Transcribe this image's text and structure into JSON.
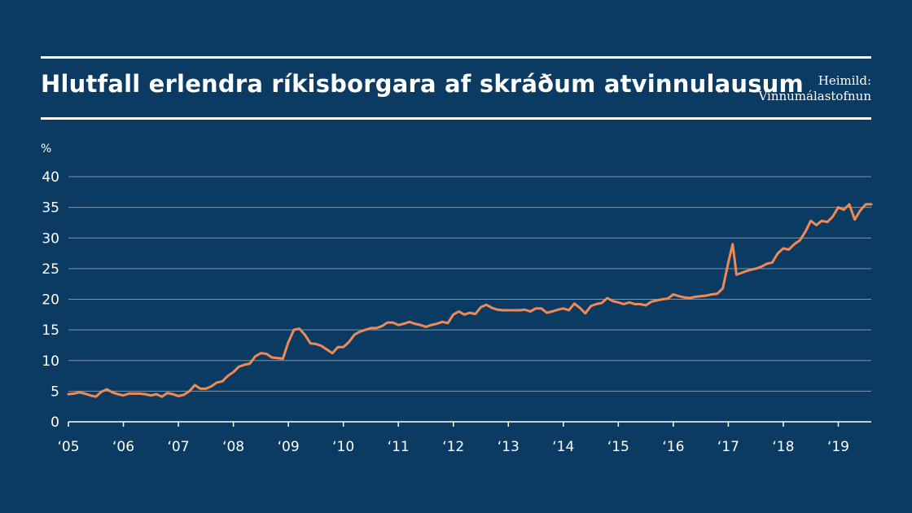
{
  "header": {
    "title": "Hlutfall erlendra ríkisborgara af skráðum atvinnulausum",
    "source_line1": "Heimild:",
    "source_line2": "Vinnumálastofnun"
  },
  "colors": {
    "background": "#0b3a63",
    "line": "#f08a55",
    "text": "#ffffff",
    "grid": "#7f97ad"
  },
  "chart_data": {
    "type": "line",
    "ylabel": "%",
    "ylim": [
      0,
      40
    ],
    "yticks": [
      0,
      5,
      10,
      15,
      20,
      25,
      30,
      35,
      40
    ],
    "xlim": [
      2005,
      2019.6
    ],
    "xticks": [
      {
        "value": 2005,
        "label": "‘05"
      },
      {
        "value": 2006,
        "label": "‘06"
      },
      {
        "value": 2007,
        "label": "‘07"
      },
      {
        "value": 2008,
        "label": "‘08"
      },
      {
        "value": 2009,
        "label": "‘09"
      },
      {
        "value": 2010,
        "label": "‘10"
      },
      {
        "value": 2011,
        "label": "‘11"
      },
      {
        "value": 2012,
        "label": "‘12"
      },
      {
        "value": 2013,
        "label": "‘13"
      },
      {
        "value": 2014,
        "label": "‘14"
      },
      {
        "value": 2015,
        "label": "‘15"
      },
      {
        "value": 2016,
        "label": "‘16"
      },
      {
        "value": 2017,
        "label": "‘17"
      },
      {
        "value": 2018,
        "label": "‘18"
      },
      {
        "value": 2019,
        "label": "‘19"
      }
    ],
    "grid": "horizontal",
    "series": [
      {
        "x": [
          2005.0,
          2005.1,
          2005.2,
          2005.3,
          2005.4,
          2005.5,
          2005.6,
          2005.7,
          2005.8,
          2005.9,
          2006.0,
          2006.1,
          2006.2,
          2006.3,
          2006.4,
          2006.5,
          2006.6,
          2006.7,
          2006.8,
          2006.9,
          2007.0,
          2007.1,
          2007.2,
          2007.3,
          2007.4,
          2007.5,
          2007.6,
          2007.7,
          2007.8,
          2007.9,
          2008.0,
          2008.1,
          2008.2,
          2008.3,
          2008.4,
          2008.5,
          2008.6,
          2008.7,
          2008.8,
          2008.9,
          2009.0,
          2009.1,
          2009.2,
          2009.3,
          2009.4,
          2009.5,
          2009.6,
          2009.7,
          2009.8,
          2009.9,
          2010.0,
          2010.1,
          2010.2,
          2010.3,
          2010.4,
          2010.5,
          2010.6,
          2010.7,
          2010.8,
          2010.9,
          2011.0,
          2011.1,
          2011.2,
          2011.3,
          2011.4,
          2011.5,
          2011.6,
          2011.7,
          2011.8,
          2011.9,
          2012.0,
          2012.1,
          2012.2,
          2012.3,
          2012.4,
          2012.5,
          2012.6,
          2012.7,
          2012.8,
          2012.9,
          2013.0,
          2013.1,
          2013.2,
          2013.3,
          2013.4,
          2013.5,
          2013.6,
          2013.7,
          2013.8,
          2013.9,
          2014.0,
          2014.1,
          2014.2,
          2014.3,
          2014.4,
          2014.5,
          2014.6,
          2014.7,
          2014.8,
          2014.9,
          2015.0,
          2015.1,
          2015.2,
          2015.3,
          2015.4,
          2015.5,
          2015.6,
          2015.7,
          2015.8,
          2015.9,
          2016.0,
          2016.1,
          2016.2,
          2016.3,
          2016.4,
          2016.5,
          2016.6,
          2016.7,
          2016.8,
          2016.9,
          2017.0,
          2017.08,
          2017.15,
          2017.3,
          2017.4,
          2017.5,
          2017.6,
          2017.7,
          2017.8,
          2017.9,
          2018.0,
          2018.1,
          2018.2,
          2018.3,
          2018.4,
          2018.5,
          2018.6,
          2018.7,
          2018.8,
          2018.9,
          2019.0,
          2019.1,
          2019.2,
          2019.3,
          2019.4,
          2019.5,
          2019.6
        ],
        "y": [
          4.5,
          4.6,
          4.8,
          4.6,
          4.3,
          4.1,
          4.9,
          5.3,
          4.8,
          4.5,
          4.3,
          4.6,
          4.6,
          4.6,
          4.5,
          4.3,
          4.5,
          4.1,
          4.7,
          4.5,
          4.2,
          4.4,
          5.0,
          6.0,
          5.4,
          5.4,
          5.8,
          6.4,
          6.6,
          7.5,
          8.1,
          9.0,
          9.3,
          9.5,
          10.7,
          11.2,
          11.1,
          10.5,
          10.4,
          10.3,
          13.0,
          15.0,
          15.2,
          14.2,
          12.8,
          12.7,
          12.4,
          11.8,
          11.2,
          12.2,
          12.2,
          13.0,
          14.2,
          14.7,
          15.0,
          15.3,
          15.3,
          15.6,
          16.2,
          16.2,
          15.8,
          16.0,
          16.3,
          16.0,
          15.8,
          15.5,
          15.8,
          16.0,
          16.3,
          16.1,
          17.5,
          18.0,
          17.5,
          17.8,
          17.6,
          18.7,
          19.1,
          18.6,
          18.3,
          18.2,
          18.2,
          18.2,
          18.2,
          18.3,
          18.0,
          18.5,
          18.5,
          17.8,
          18.0,
          18.3,
          18.5,
          18.2,
          19.3,
          18.6,
          17.7,
          18.9,
          19.2,
          19.4,
          20.2,
          19.7,
          19.5,
          19.2,
          19.5,
          19.2,
          19.2,
          19.0,
          19.6,
          19.8,
          20.0,
          20.1,
          20.8,
          20.5,
          20.3,
          20.2,
          20.4,
          20.5,
          20.6,
          20.8,
          20.9,
          21.8,
          26.0,
          29.0,
          24.0,
          24.5,
          24.8,
          25.0,
          25.3,
          25.8,
          26.0,
          27.5,
          28.3,
          28.1,
          29.0,
          29.6,
          31.0,
          32.8,
          32.1,
          32.8,
          32.6,
          33.5,
          35.0,
          34.6,
          35.5,
          33.0,
          34.5,
          35.5,
          35.5
        ]
      }
    ]
  }
}
